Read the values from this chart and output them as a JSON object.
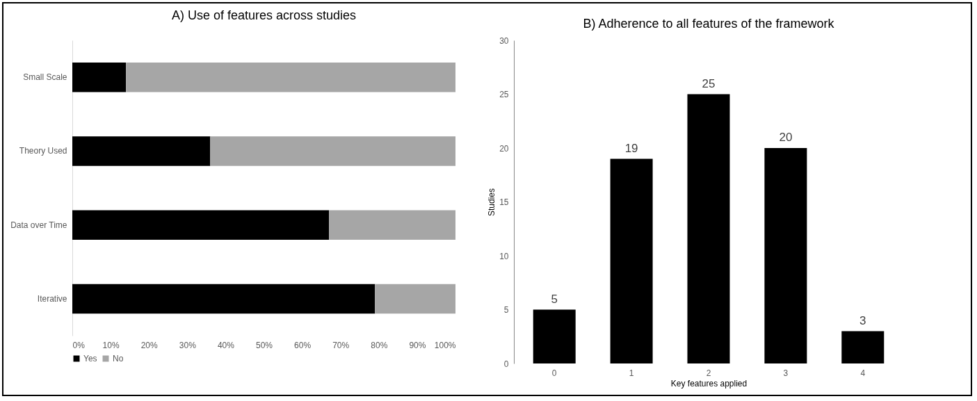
{
  "chart_data": [
    {
      "type": "bar",
      "title": "A) Use of features across studies",
      "orientation": "horizontal",
      "stacked": true,
      "categories": [
        "Small Scale",
        "Theory Used",
        "Data over Time",
        "Iterative"
      ],
      "series": [
        {
          "name": "Yes",
          "color": "#000000",
          "values": [
            14,
            36,
            67,
            79
          ]
        },
        {
          "name": "No",
          "color": "#a6a6a6",
          "values": [
            86,
            64,
            33,
            21
          ]
        }
      ],
      "xlim": [
        0,
        100
      ],
      "xticks": [
        {
          "value": 0,
          "label": "0%"
        },
        {
          "value": 10,
          "label": "10%"
        },
        {
          "value": 20,
          "label": "20%"
        },
        {
          "value": 30,
          "label": "30%"
        },
        {
          "value": 40,
          "label": "40%"
        },
        {
          "value": 50,
          "label": "50%"
        },
        {
          "value": 60,
          "label": "60%"
        },
        {
          "value": 70,
          "label": "70%"
        },
        {
          "value": 80,
          "label": "80%"
        },
        {
          "value": 90,
          "label": "90%"
        },
        {
          "value": 100,
          "label": "100%"
        }
      ],
      "legend": "bottom",
      "grid": false
    },
    {
      "type": "bar",
      "title": "B) Adherence to all features of the framework",
      "xlabel": "Key features applied",
      "ylabel": "Studies",
      "categories": [
        "0",
        "1",
        "2",
        "3",
        "4"
      ],
      "values": [
        5,
        19,
        25,
        20,
        3
      ],
      "color": "#000000",
      "ylim": [
        0,
        30
      ],
      "yticks": [
        0,
        5,
        10,
        15,
        20,
        25,
        30
      ],
      "data_labels": true,
      "grid": false
    }
  ]
}
